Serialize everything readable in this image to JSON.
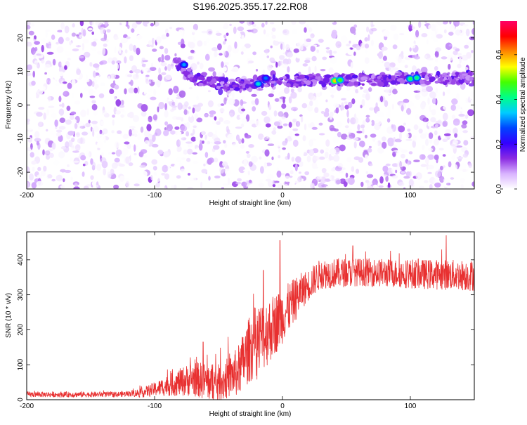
{
  "title": "S196.2025.355.17.22.R08",
  "chart_data": [
    {
      "type": "heatmap",
      "xlabel": "Height of straight line (km)",
      "ylabel": "Frequency (Hz)",
      "xlim": [
        -200,
        150
      ],
      "ylim": [
        -25,
        25
      ],
      "xticks": [
        -200,
        -100,
        0,
        100
      ],
      "yticks": [
        -20,
        -10,
        0,
        10,
        20
      ],
      "colorbar": {
        "label": "Normalized spectral amplitude",
        "range": [
          0,
          0.75
        ],
        "ticks": [
          0.0,
          0.2,
          0.4,
          0.6
        ],
        "colors": [
          "#ffffff",
          "#d9b3ff",
          "#8a2be2",
          "#3300ff",
          "#0044ff",
          "#00ccff",
          "#00ff88",
          "#44ff00",
          "#ffff00",
          "#ff8800",
          "#ff0000",
          "#ff0066"
        ]
      },
      "ridge": [
        {
          "x": -80,
          "y": 12.5
        },
        {
          "x": -70,
          "y": 8
        },
        {
          "x": -50,
          "y": 6.5
        },
        {
          "x": -30,
          "y": 6
        },
        {
          "x": -18,
          "y": 7
        },
        {
          "x": 0,
          "y": 7
        },
        {
          "x": 20,
          "y": 7.5
        },
        {
          "x": 42,
          "y": 7.5
        },
        {
          "x": 70,
          "y": 7.5
        },
        {
          "x": 100,
          "y": 8
        },
        {
          "x": 150,
          "y": 8
        }
      ],
      "hotspots": [
        {
          "x": -77,
          "y": 12,
          "v": 0.3
        },
        {
          "x": -19,
          "y": 6.3,
          "v": 0.35
        },
        {
          "x": -13,
          "y": 8,
          "v": 0.28
        },
        {
          "x": 41,
          "y": 7.2,
          "v": 0.55
        },
        {
          "x": 45,
          "y": 7.4,
          "v": 0.45
        },
        {
          "x": 100,
          "y": 7.8,
          "v": 0.42
        },
        {
          "x": 105,
          "y": 8.1,
          "v": 0.4
        }
      ]
    },
    {
      "type": "line",
      "xlabel": "Height of straight line (km)",
      "ylabel": "SNR (10 * v/v)",
      "xlim": [
        -200,
        150
      ],
      "ylim": [
        0,
        480
      ],
      "xticks": [
        -200,
        -100,
        0,
        100
      ],
      "yticks": [
        0,
        100,
        200,
        300,
        400
      ],
      "series": [
        {
          "color": "#e83030",
          "baseline": [
            {
              "x": -200,
              "y": 15
            },
            {
              "x": -130,
              "y": 15
            },
            {
              "x": -110,
              "y": 20
            },
            {
              "x": -90,
              "y": 40
            },
            {
              "x": -70,
              "y": 60
            },
            {
              "x": -50,
              "y": 45
            },
            {
              "x": -35,
              "y": 80
            },
            {
              "x": -25,
              "y": 150
            },
            {
              "x": -10,
              "y": 200
            },
            {
              "x": 0,
              "y": 240
            },
            {
              "x": 15,
              "y": 310
            },
            {
              "x": 30,
              "y": 360
            },
            {
              "x": 60,
              "y": 365
            },
            {
              "x": 100,
              "y": 360
            },
            {
              "x": 150,
              "y": 355
            }
          ],
          "noise": [
            {
              "x": -200,
              "y": 8
            },
            {
              "x": -120,
              "y": 8
            },
            {
              "x": -100,
              "y": 20
            },
            {
              "x": -70,
              "y": 50
            },
            {
              "x": -40,
              "y": 60
            },
            {
              "x": -20,
              "y": 110
            },
            {
              "x": 0,
              "y": 80
            },
            {
              "x": 20,
              "y": 45
            },
            {
              "x": 60,
              "y": 40
            },
            {
              "x": 150,
              "y": 45
            }
          ],
          "spikes": [
            {
              "x": -2,
              "y": 455
            },
            {
              "x": -15,
              "y": 370
            },
            {
              "x": -62,
              "y": 165
            },
            {
              "x": 55,
              "y": 440
            },
            {
              "x": 128,
              "y": 470
            }
          ]
        }
      ]
    }
  ]
}
